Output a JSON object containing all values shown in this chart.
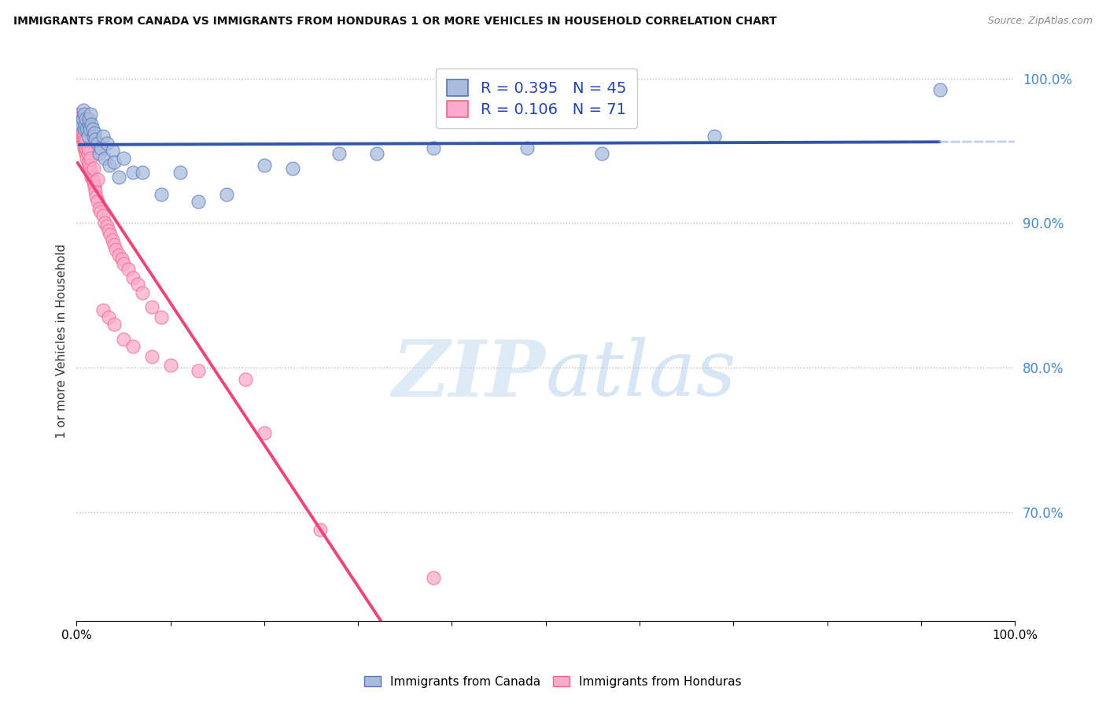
{
  "title": "IMMIGRANTS FROM CANADA VS IMMIGRANTS FROM HONDURAS 1 OR MORE VEHICLES IN HOUSEHOLD CORRELATION CHART",
  "source": "Source: ZipAtlas.com",
  "ylabel": "1 or more Vehicles in Household",
  "xlim": [
    0.0,
    1.0
  ],
  "ylim": [
    0.625,
    1.012
  ],
  "yticks": [
    0.7,
    0.8,
    0.9,
    1.0
  ],
  "ytick_labels": [
    "70.0%",
    "80.0%",
    "90.0%",
    "100.0%"
  ],
  "xtick_positions": [
    0.0,
    0.1,
    0.2,
    0.3,
    0.4,
    0.5,
    0.6,
    0.7,
    0.8,
    0.9,
    1.0
  ],
  "xtick_labels": [
    "0.0%",
    "",
    "",
    "",
    "",
    "",
    "",
    "",
    "",
    "",
    "100.0%"
  ],
  "R_canada": 0.395,
  "N_canada": 45,
  "R_honduras": 0.106,
  "N_honduras": 71,
  "blue_fill": "#AABBDD",
  "blue_edge": "#5577BB",
  "pink_fill": "#FFAACC",
  "pink_edge": "#EE6688",
  "blue_line": "#3355AA",
  "pink_line": "#EE4477",
  "blue_dash": "#AABBDD",
  "pink_dash": "#FFAACC",
  "watermark_zip": "ZIP",
  "watermark_atlas": "atlas",
  "watermark_color": "#CCDDF0",
  "canada_x": [
    0.003,
    0.005,
    0.006,
    0.007,
    0.008,
    0.008,
    0.009,
    0.01,
    0.011,
    0.012,
    0.013,
    0.013,
    0.014,
    0.015,
    0.016,
    0.017,
    0.018,
    0.019,
    0.02,
    0.022,
    0.024,
    0.026,
    0.028,
    0.03,
    0.032,
    0.035,
    0.038,
    0.04,
    0.045,
    0.05,
    0.06,
    0.07,
    0.09,
    0.11,
    0.13,
    0.16,
    0.2,
    0.23,
    0.28,
    0.32,
    0.38,
    0.48,
    0.56,
    0.68,
    0.92
  ],
  "canada_y": [
    0.97,
    0.968,
    0.972,
    0.978,
    0.965,
    0.975,
    0.968,
    0.972,
    0.965,
    0.96,
    0.968,
    0.972,
    0.965,
    0.975,
    0.968,
    0.965,
    0.96,
    0.962,
    0.958,
    0.955,
    0.948,
    0.952,
    0.96,
    0.945,
    0.955,
    0.94,
    0.95,
    0.942,
    0.932,
    0.945,
    0.935,
    0.935,
    0.92,
    0.935,
    0.915,
    0.92,
    0.94,
    0.938,
    0.948,
    0.948,
    0.952,
    0.952,
    0.948,
    0.96,
    0.992
  ],
  "honduras_x": [
    0.001,
    0.002,
    0.003,
    0.003,
    0.004,
    0.004,
    0.005,
    0.005,
    0.006,
    0.006,
    0.007,
    0.007,
    0.008,
    0.008,
    0.009,
    0.009,
    0.01,
    0.01,
    0.011,
    0.012,
    0.012,
    0.013,
    0.014,
    0.015,
    0.016,
    0.017,
    0.018,
    0.019,
    0.02,
    0.021,
    0.022,
    0.024,
    0.026,
    0.028,
    0.03,
    0.032,
    0.034,
    0.036,
    0.038,
    0.04,
    0.042,
    0.045,
    0.048,
    0.05,
    0.055,
    0.06,
    0.065,
    0.07,
    0.08,
    0.09,
    0.002,
    0.004,
    0.006,
    0.008,
    0.01,
    0.012,
    0.015,
    0.018,
    0.022,
    0.028,
    0.034,
    0.04,
    0.05,
    0.06,
    0.08,
    0.1,
    0.13,
    0.18,
    0.2,
    0.26,
    0.38
  ],
  "honduras_y": [
    0.972,
    0.968,
    0.97,
    0.965,
    0.962,
    0.968,
    0.96,
    0.965,
    0.958,
    0.962,
    0.955,
    0.96,
    0.952,
    0.958,
    0.95,
    0.955,
    0.948,
    0.952,
    0.945,
    0.942,
    0.948,
    0.94,
    0.938,
    0.935,
    0.932,
    0.93,
    0.928,
    0.925,
    0.922,
    0.918,
    0.915,
    0.91,
    0.908,
    0.905,
    0.9,
    0.898,
    0.895,
    0.892,
    0.888,
    0.885,
    0.882,
    0.878,
    0.875,
    0.872,
    0.868,
    0.862,
    0.858,
    0.852,
    0.842,
    0.835,
    0.975,
    0.972,
    0.968,
    0.962,
    0.958,
    0.952,
    0.945,
    0.938,
    0.93,
    0.84,
    0.835,
    0.83,
    0.82,
    0.815,
    0.808,
    0.802,
    0.798,
    0.792,
    0.755,
    0.688,
    0.655
  ]
}
